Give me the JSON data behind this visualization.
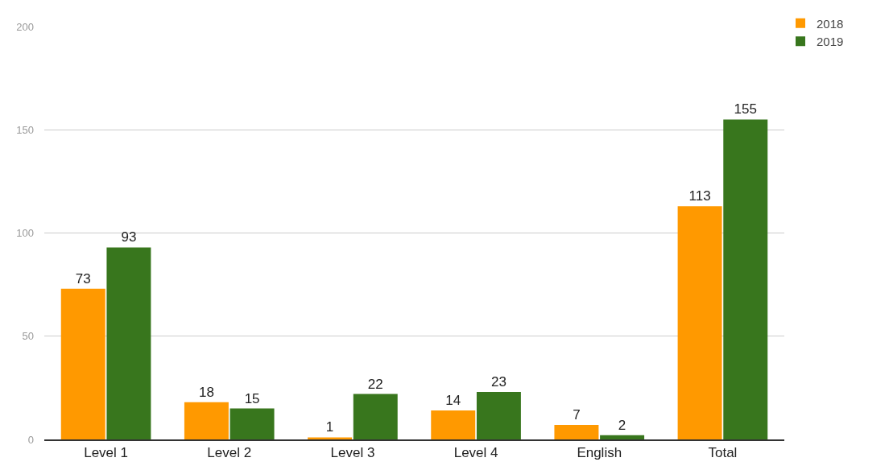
{
  "chart_data": {
    "type": "bar",
    "categories": [
      "Level 1",
      "Level 2",
      "Level 3",
      "Level 4",
      "English",
      "Total"
    ],
    "series": [
      {
        "name": "2018",
        "color": "#ff9900",
        "values": [
          73,
          18,
          1,
          14,
          7,
          113
        ]
      },
      {
        "name": "2019",
        "color": "#38761d",
        "values": [
          93,
          15,
          22,
          23,
          2,
          155
        ]
      }
    ],
    "ylim": [
      0,
      200
    ],
    "yticks": [
      0,
      50,
      100,
      150,
      200
    ],
    "grid": "y",
    "legend": "top right",
    "data_labels": true
  }
}
